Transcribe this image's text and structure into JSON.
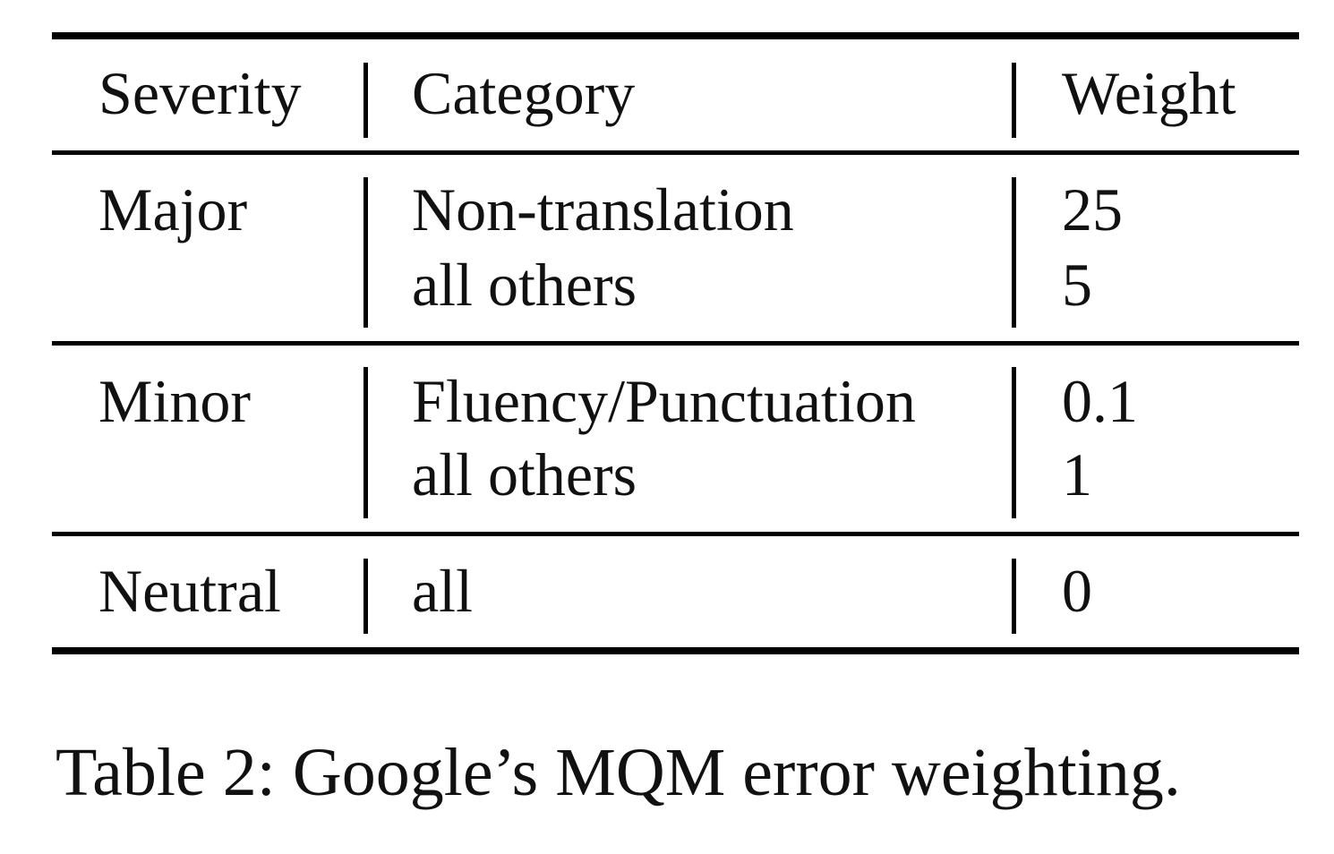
{
  "table": {
    "headers": {
      "severity": "Severity",
      "category": "Category",
      "weight": "Weight"
    },
    "groups": [
      {
        "severity": "Major",
        "rows": [
          {
            "category": "Non-translation",
            "weight": "25"
          },
          {
            "category": "all others",
            "weight": "5"
          }
        ]
      },
      {
        "severity": "Minor",
        "rows": [
          {
            "category": "Fluency/Punctuation",
            "weight": "0.1"
          },
          {
            "category": "all others",
            "weight": "1"
          }
        ]
      },
      {
        "severity": "Neutral",
        "rows": [
          {
            "category": "all",
            "weight": "0"
          }
        ]
      }
    ]
  },
  "caption": "Table 2: Google’s MQM error weighting."
}
